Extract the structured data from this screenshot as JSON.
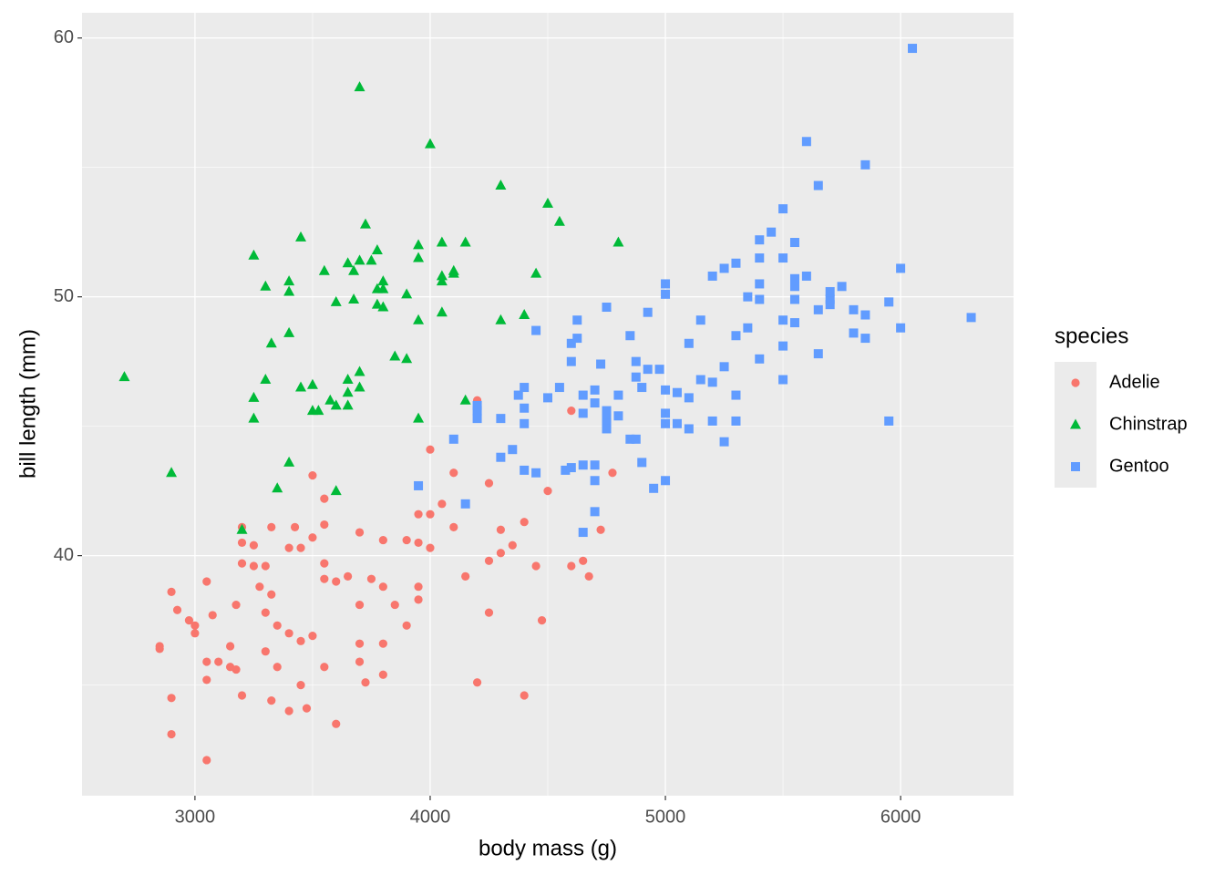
{
  "chart_data": {
    "type": "scatter",
    "x_label": "body mass (g)",
    "y_label": "bill length (mm)",
    "legend_title": "species",
    "legend": "right",
    "grid": true,
    "xlim": [
      2520,
      6480
    ],
    "ylim": [
      30.725,
      60.975
    ],
    "xticks": [
      3000,
      4000,
      5000,
      6000
    ],
    "yticks": [
      40,
      50,
      60
    ],
    "series": [
      {
        "name": "Adelie",
        "color": "#F8766D",
        "shape": "circle",
        "x": [
          2850,
          2850,
          2900,
          2900,
          2900,
          2925,
          2975,
          3000,
          3000,
          3050,
          3050,
          3050,
          3050,
          3075,
          3100,
          3150,
          3150,
          3175,
          3175,
          3200,
          3200,
          3200,
          3200,
          3250,
          3250,
          3275,
          3300,
          3300,
          3300,
          3325,
          3325,
          3325,
          3350,
          3350,
          3400,
          3400,
          3400,
          3425,
          3450,
          3450,
          3450,
          3475,
          3500,
          3500,
          3500,
          3550,
          3550,
          3550,
          3550,
          3550,
          3600,
          3600,
          3650,
          3700,
          3700,
          3700,
          3700,
          3725,
          3750,
          3800,
          3800,
          3800,
          3800,
          3850,
          3900,
          3900,
          3950,
          3950,
          3950,
          3950,
          4000,
          4000,
          4000,
          4050,
          4100,
          4100,
          4150,
          4150,
          4200,
          4200,
          4250,
          4250,
          4250,
          4300,
          4300,
          4350,
          4400,
          4400,
          4450,
          4475,
          4500,
          4600,
          4600,
          4650,
          4675,
          4725,
          4775
        ],
        "y": [
          36.5,
          36.4,
          38.6,
          34.5,
          33.1,
          37.9,
          37.5,
          37.3,
          37.0,
          39.0,
          35.9,
          35.2,
          32.1,
          37.7,
          35.9,
          36.5,
          35.7,
          38.1,
          35.6,
          41.1,
          40.5,
          39.7,
          34.6,
          40.4,
          39.6,
          38.8,
          39.6,
          37.8,
          36.3,
          41.1,
          38.5,
          34.4,
          37.3,
          35.7,
          40.3,
          37.0,
          34.0,
          41.1,
          40.3,
          36.7,
          35.0,
          34.1,
          43.1,
          40.7,
          36.9,
          42.2,
          41.2,
          39.7,
          39.1,
          35.7,
          39.0,
          33.5,
          39.2,
          40.9,
          38.1,
          36.6,
          35.9,
          35.1,
          39.1,
          40.6,
          38.8,
          36.6,
          35.4,
          38.1,
          40.6,
          37.3,
          41.6,
          40.5,
          38.8,
          38.3,
          44.1,
          40.3,
          41.6,
          42.0,
          43.2,
          41.1,
          42.0,
          39.2,
          46.0,
          35.1,
          42.8,
          39.8,
          37.8,
          41.0,
          40.1,
          40.4,
          41.3,
          34.6,
          39.6,
          37.5,
          42.5,
          45.6,
          39.6,
          39.8,
          39.2,
          41.0,
          43.2
        ]
      },
      {
        "name": "Chinstrap",
        "color": "#00BA38",
        "shape": "triangle",
        "x": [
          2700,
          2900,
          3200,
          3250,
          3250,
          3250,
          3300,
          3300,
          3325,
          3350,
          3400,
          3400,
          3400,
          3400,
          3450,
          3450,
          3500,
          3500,
          3525,
          3550,
          3575,
          3600,
          3600,
          3600,
          3650,
          3650,
          3650,
          3650,
          3675,
          3675,
          3700,
          3700,
          3700,
          3700,
          3725,
          3750,
          3775,
          3775,
          3775,
          3800,
          3800,
          3800,
          3850,
          3900,
          3900,
          3950,
          3950,
          3950,
          3950,
          4000,
          4050,
          4050,
          4050,
          4050,
          4100,
          4100,
          4150,
          4150,
          4300,
          4300,
          4400,
          4450,
          4500,
          4550,
          4800
        ],
        "y": [
          46.9,
          43.2,
          41.0,
          51.6,
          46.1,
          45.3,
          50.4,
          46.8,
          48.2,
          42.6,
          50.6,
          50.2,
          48.6,
          43.6,
          52.3,
          46.5,
          46.6,
          45.6,
          45.6,
          51.0,
          46.0,
          42.5,
          49.8,
          45.8,
          51.3,
          46.8,
          46.3,
          45.8,
          49.9,
          51.0,
          58.1,
          51.4,
          47.1,
          46.5,
          52.8,
          51.4,
          51.8,
          50.3,
          49.7,
          50.6,
          50.3,
          49.6,
          47.7,
          50.1,
          47.6,
          52.0,
          51.5,
          49.1,
          45.3,
          55.9,
          52.1,
          50.8,
          50.6,
          49.4,
          51.0,
          50.9,
          52.1,
          46.0,
          54.3,
          49.1,
          49.3,
          50.9,
          53.6,
          52.9,
          52.1
        ]
      },
      {
        "name": "Gentoo",
        "color": "#619CFF",
        "shape": "square",
        "x": [
          3950,
          4100,
          4150,
          4200,
          4200,
          4200,
          4300,
          4300,
          4350,
          4375,
          4400,
          4400,
          4400,
          4400,
          4450,
          4450,
          4500,
          4550,
          4575,
          4600,
          4600,
          4600,
          4625,
          4625,
          4650,
          4650,
          4650,
          4650,
          4700,
          4700,
          4700,
          4700,
          4700,
          4725,
          4750,
          4750,
          4750,
          4750,
          4750,
          4800,
          4800,
          4850,
          4850,
          4875,
          4875,
          4875,
          4900,
          4900,
          4925,
          4925,
          4950,
          4975,
          5000,
          5000,
          5000,
          5000,
          5000,
          5000,
          5050,
          5050,
          5100,
          5100,
          5100,
          5150,
          5150,
          5200,
          5200,
          5200,
          5250,
          5250,
          5250,
          5300,
          5300,
          5300,
          5300,
          5350,
          5350,
          5400,
          5400,
          5400,
          5400,
          5400,
          5450,
          5500,
          5500,
          5500,
          5500,
          5500,
          5550,
          5550,
          5550,
          5550,
          5550,
          5600,
          5600,
          5650,
          5650,
          5650,
          5700,
          5700,
          5700,
          5750,
          5800,
          5800,
          5850,
          5850,
          5850,
          5950,
          5950,
          6000,
          6000,
          6050,
          6300
        ],
        "y": [
          42.7,
          44.5,
          42.0,
          45.8,
          45.6,
          45.3,
          45.3,
          43.8,
          44.1,
          46.2,
          46.5,
          45.7,
          45.1,
          43.3,
          48.7,
          43.2,
          46.1,
          46.5,
          43.3,
          47.5,
          48.2,
          43.4,
          48.4,
          49.1,
          46.2,
          45.5,
          43.5,
          40.9,
          43.5,
          42.9,
          41.7,
          46.4,
          45.9,
          47.4,
          49.6,
          45.6,
          45.3,
          45.1,
          44.9,
          46.2,
          45.4,
          48.5,
          44.5,
          47.5,
          46.9,
          44.5,
          46.5,
          43.6,
          49.4,
          47.2,
          42.6,
          47.2,
          50.5,
          50.1,
          46.4,
          45.5,
          45.1,
          42.9,
          46.3,
          45.1,
          46.1,
          44.9,
          48.2,
          49.1,
          46.8,
          46.7,
          45.2,
          50.8,
          51.1,
          47.3,
          44.4,
          51.3,
          48.5,
          46.2,
          45.2,
          50.0,
          48.8,
          52.2,
          51.5,
          50.5,
          49.9,
          47.6,
          52.5,
          53.4,
          51.5,
          49.1,
          48.1,
          46.8,
          52.1,
          50.7,
          50.4,
          49.9,
          49.0,
          56.0,
          50.8,
          54.3,
          49.5,
          47.8,
          50.2,
          49.9,
          49.7,
          50.4,
          49.5,
          48.6,
          55.1,
          49.3,
          48.4,
          49.8,
          45.2,
          51.1,
          48.8,
          59.6,
          49.2
        ]
      }
    ]
  }
}
